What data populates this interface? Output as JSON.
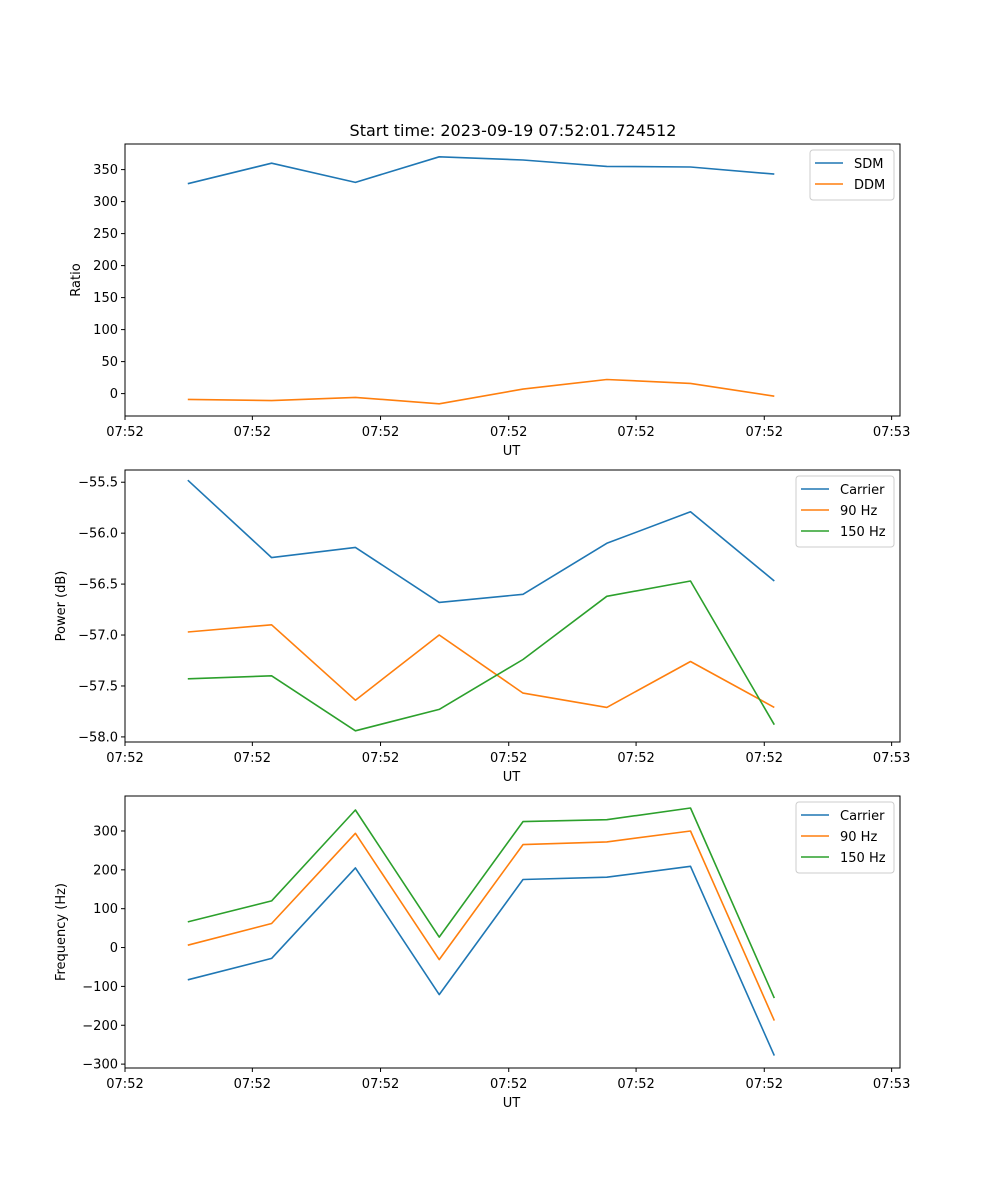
{
  "figure_title": "Start time: 2023-09-19 07:52:01.724512",
  "chart_data": [
    {
      "type": "line",
      "title": "Start time: 2023-09-19 07:52:01.724512",
      "xlabel": "UT",
      "ylabel": "Ratio",
      "x_tick_labels": [
        "07:52",
        "07:52",
        "07:52",
        "07:52",
        "07:52",
        "07:52",
        "07:53"
      ],
      "x": [
        1,
        2,
        3,
        4,
        5,
        6,
        7,
        8
      ],
      "xlim": [
        0.25,
        9.5
      ],
      "ylim": [
        -35,
        390
      ],
      "yticks": [
        0,
        50,
        100,
        150,
        200,
        250,
        300,
        350
      ],
      "legend_position": "top-right",
      "series": [
        {
          "name": "SDM",
          "color": "#1f77b4",
          "values": [
            328,
            360,
            330,
            370,
            365,
            355,
            354,
            343
          ]
        },
        {
          "name": "DDM",
          "color": "#ff7f0e",
          "values": [
            -9,
            -11,
            -6,
            -16,
            7,
            22,
            16,
            -4
          ]
        }
      ]
    },
    {
      "type": "line",
      "title": "",
      "xlabel": "UT",
      "ylabel": "Power (dB)",
      "x_tick_labels": [
        "07:52",
        "07:52",
        "07:52",
        "07:52",
        "07:52",
        "07:52",
        "07:53"
      ],
      "x": [
        1,
        2,
        3,
        4,
        5,
        6,
        7,
        8
      ],
      "xlim": [
        0.25,
        9.5
      ],
      "ylim": [
        -58.05,
        -55.38
      ],
      "yticks": [
        -58.0,
        -57.5,
        -57.0,
        -56.5,
        -56.0,
        -55.5
      ],
      "ytick_labels": [
        "−58.0",
        "−57.5",
        "−57.0",
        "−56.5",
        "−56.0",
        "−55.5"
      ],
      "legend_position": "top-right",
      "series": [
        {
          "name": "Carrier",
          "color": "#1f77b4",
          "values": [
            -55.48,
            -56.24,
            -56.14,
            -56.68,
            -56.6,
            -56.1,
            -55.79,
            -56.47
          ]
        },
        {
          "name": "90 Hz",
          "color": "#ff7f0e",
          "values": [
            -56.97,
            -56.9,
            -57.64,
            -57.0,
            -57.57,
            -57.71,
            -57.26,
            -57.71
          ]
        },
        {
          "name": "150 Hz",
          "color": "#2ca02c",
          "values": [
            -57.43,
            -57.4,
            -57.94,
            -57.73,
            -57.24,
            -56.62,
            -56.47,
            -57.88
          ]
        }
      ]
    },
    {
      "type": "line",
      "title": "",
      "xlabel": "UT",
      "ylabel": "Frequency (Hz)",
      "x_tick_labels": [
        "07:52",
        "07:52",
        "07:52",
        "07:52",
        "07:52",
        "07:52",
        "07:53"
      ],
      "x": [
        1,
        2,
        3,
        4,
        5,
        6,
        7,
        8
      ],
      "xlim": [
        0.25,
        9.5
      ],
      "ylim": [
        -310,
        390
      ],
      "yticks": [
        -300,
        -200,
        -100,
        0,
        100,
        200,
        300
      ],
      "ytick_labels": [
        "−300",
        "−200",
        "−100",
        "0",
        "100",
        "200",
        "300"
      ],
      "legend_position": "top-right",
      "series": [
        {
          "name": "Carrier",
          "color": "#1f77b4",
          "values": [
            -83,
            -28,
            205,
            -121,
            175,
            181,
            209,
            -278
          ]
        },
        {
          "name": "90 Hz",
          "color": "#ff7f0e",
          "values": [
            6,
            62,
            294,
            -31,
            265,
            272,
            300,
            -188
          ]
        },
        {
          "name": "150 Hz",
          "color": "#2ca02c",
          "values": [
            66,
            120,
            354,
            27,
            324,
            329,
            359,
            -130
          ]
        }
      ]
    }
  ]
}
